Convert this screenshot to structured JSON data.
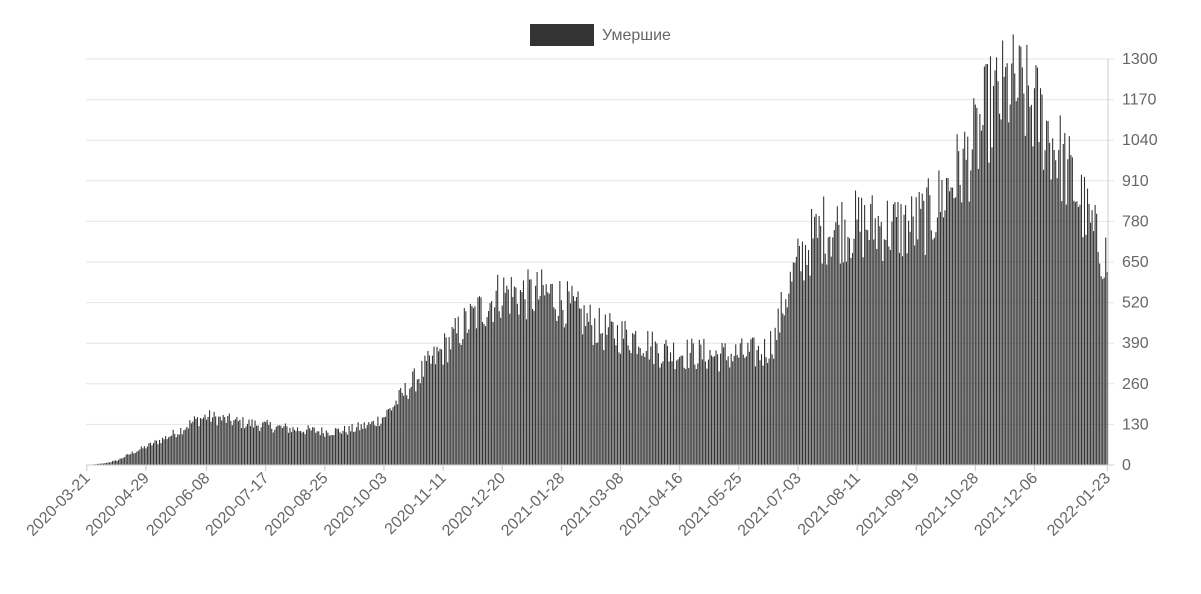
{
  "chart_data": {
    "type": "bar",
    "legend": {
      "label": "Умершие",
      "color": "#333333",
      "position": "top-center"
    },
    "x_start_date": "2020-03-21",
    "x_end_date": "2022-01-23",
    "x_tick_labels": [
      "2020-03-21",
      "2020-04-29",
      "2020-06-08",
      "2020-07-17",
      "2020-08-25",
      "2020-10-03",
      "2020-11-11",
      "2020-12-20",
      "2021-01-28",
      "2021-03-08",
      "2021-04-16",
      "2021-05-25",
      "2021-07-03",
      "2021-08-11",
      "2021-09-19",
      "2021-10-28",
      "2021-12-06",
      "2022-01-23"
    ],
    "y_tick_labels": [
      "1300",
      "1170",
      "1040",
      "910",
      "780",
      "650",
      "520",
      "390",
      "260",
      "130",
      "0"
    ],
    "ylim": [
      0,
      1300
    ],
    "y_axis_position": "right",
    "grid": true,
    "bar_color": "#333333",
    "series": [
      {
        "name": "Умершие",
        "points": [
          [
            "2020-03-21",
            0
          ],
          [
            "2020-04-01",
            5
          ],
          [
            "2020-04-10",
            15
          ],
          [
            "2020-04-20",
            40
          ],
          [
            "2020-04-29",
            60
          ],
          [
            "2020-05-10",
            85
          ],
          [
            "2020-05-20",
            110
          ],
          [
            "2020-05-31",
            145
          ],
          [
            "2020-06-08",
            160
          ],
          [
            "2020-06-20",
            150
          ],
          [
            "2020-07-01",
            140
          ],
          [
            "2020-07-17",
            130
          ],
          [
            "2020-08-01",
            120
          ],
          [
            "2020-08-25",
            110
          ],
          [
            "2020-09-10",
            115
          ],
          [
            "2020-09-25",
            135
          ],
          [
            "2020-10-03",
            160
          ],
          [
            "2020-10-15",
            230
          ],
          [
            "2020-10-25",
            290
          ],
          [
            "2020-11-11",
            380
          ],
          [
            "2020-11-25",
            460
          ],
          [
            "2020-12-10",
            530
          ],
          [
            "2020-12-20",
            570
          ],
          [
            "2021-01-05",
            560
          ],
          [
            "2021-01-20",
            565
          ],
          [
            "2021-01-28",
            545
          ],
          [
            "2021-02-10",
            490
          ],
          [
            "2021-02-25",
            440
          ],
          [
            "2021-03-08",
            430
          ],
          [
            "2021-03-20",
            420
          ],
          [
            "2021-04-01",
            380
          ],
          [
            "2021-04-16",
            370
          ],
          [
            "2021-05-01",
            365
          ],
          [
            "2021-05-15",
            360
          ],
          [
            "2021-05-25",
            365
          ],
          [
            "2021-06-10",
            370
          ],
          [
            "2021-06-18",
            420
          ],
          [
            "2021-06-25",
            560
          ],
          [
            "2021-07-03",
            660
          ],
          [
            "2021-07-12",
            740
          ],
          [
            "2021-07-20",
            780
          ],
          [
            "2021-08-11",
            790
          ],
          [
            "2021-08-25",
            790
          ],
          [
            "2021-09-10",
            785
          ],
          [
            "2021-09-19",
            795
          ],
          [
            "2021-09-30",
            830
          ],
          [
            "2021-10-10",
            920
          ],
          [
            "2021-10-20",
            990
          ],
          [
            "2021-10-28",
            1060
          ],
          [
            "2021-11-05",
            1170
          ],
          [
            "2021-11-15",
            1225
          ],
          [
            "2021-11-20",
            1250
          ],
          [
            "2021-11-25",
            1240
          ],
          [
            "2021-12-06",
            1180
          ],
          [
            "2021-12-15",
            1100
          ],
          [
            "2021-12-25",
            1000
          ],
          [
            "2022-01-05",
            880
          ],
          [
            "2022-01-15",
            750
          ],
          [
            "2022-01-23",
            680
          ]
        ]
      }
    ]
  }
}
